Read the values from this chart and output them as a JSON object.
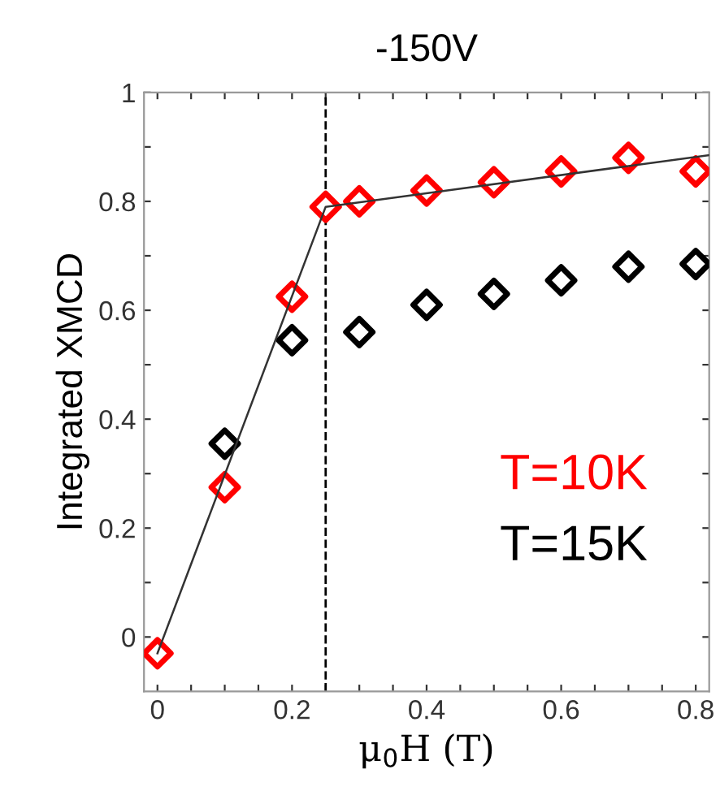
{
  "chart_data": {
    "type": "scatter",
    "title": "-150V",
    "xlabel": "μ$_{0}$H (T)",
    "ylabel": "Integrated XMCD",
    "xlim": [
      -0.02,
      0.82
    ],
    "ylim": [
      -0.1,
      1
    ],
    "xticks": [
      0,
      {
        "value": 0.05,
        "label": null
      },
      0.2,
      {
        "value": 0.1,
        "label": null
      },
      {
        "value": 0.15,
        "label": null
      },
      {
        "value": 0.25,
        "label": null
      },
      {
        "value": 0.3,
        "label": null
      },
      {
        "value": 0.35,
        "label": null
      },
      0.4,
      {
        "value": 0.45,
        "label": null
      },
      {
        "value": 0.5,
        "label": null
      },
      {
        "value": 0.55,
        "label": null
      },
      0.6,
      {
        "value": 0.65,
        "label": null
      },
      {
        "value": 0.7,
        "label": null
      },
      {
        "value": 0.75,
        "label": null
      },
      0.8
    ],
    "yticks": [
      0,
      {
        "value": 0.1,
        "label": null
      },
      0.2,
      {
        "value": 0.3,
        "label": null
      },
      0.4,
      {
        "value": 0.5,
        "label": null
      },
      0.6,
      {
        "value": 0.7,
        "label": null
      },
      0.8,
      {
        "value": 0.9,
        "label": null
      },
      1
    ],
    "marker": "diamond",
    "grid": false,
    "legend": "right",
    "ref_lines": [
      {
        "axis": "x",
        "value": 0.25,
        "color": "#000000",
        "line_style": "dashed"
      }
    ],
    "series": [
      {
        "type": "line",
        "x": [
          0,
          0.25,
          0.82
        ],
        "values": [
          -0.03,
          0.79,
          0.885
        ],
        "color": "#333333",
        "marker": "none",
        "line_style": "solid"
      },
      {
        "name": "T=10K",
        "color": "#ff0000",
        "x": [
          0,
          0.1,
          0.2,
          0.25,
          0.3,
          0.4,
          0.5,
          0.6,
          0.7,
          0.8
        ],
        "values": [
          -0.03,
          0.275,
          0.625,
          0.79,
          0.8,
          0.82,
          0.835,
          0.855,
          0.88,
          0.855
        ]
      },
      {
        "name": "T=15K",
        "color": "#000000",
        "x": [
          0.1,
          0.2,
          0.3,
          0.4,
          0.5,
          0.6,
          0.7,
          0.8
        ],
        "values": [
          0.355,
          0.545,
          0.56,
          0.61,
          0.63,
          0.655,
          0.68,
          0.685
        ]
      }
    ]
  }
}
